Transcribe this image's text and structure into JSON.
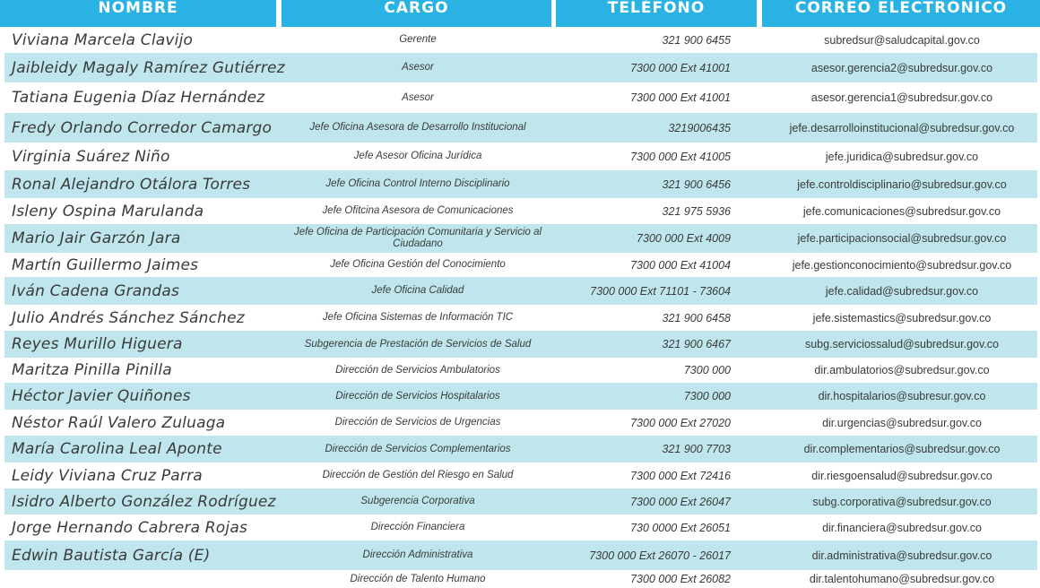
{
  "header": {
    "nombre": "NOMBRE",
    "cargo": "CARGO",
    "telefono": "TELÉFONO",
    "correo": "CORREO ELECTRÓNICO"
  },
  "colors": {
    "header_bg": "#29b2e3",
    "row_shade": "#bfe6ec",
    "text": "#3a3a3a"
  },
  "rows": [
    {
      "nombre": "Viviana Marcela Clavijo",
      "cargo": "Gerente",
      "telefono": "321 900 6455",
      "correo": "subredsur@saludcapital.gov.co"
    },
    {
      "nombre": "Jaibleidy Magaly Ramírez Gutiérrez",
      "cargo": "Asesor",
      "telefono": "7300 000 Ext 41001",
      "correo": "asesor.gerencia2@subredsur.gov.co"
    },
    {
      "nombre": "Tatiana Eugenia Díaz Hernández",
      "cargo": "Asesor",
      "telefono": "7300 000 Ext 41001",
      "correo": "asesor.gerencia1@subredsur.gov.co"
    },
    {
      "nombre": "Fredy Orlando Corredor Camargo",
      "cargo": "Jefe Oficina Asesora de Desarrollo Institucional",
      "telefono": "3219006435",
      "correo": "jefe.desarrolloinstitucional@subredsur.gov.co"
    },
    {
      "nombre": "Virginia Suárez Niño",
      "cargo": "Jefe Asesor Oficina Jurídica",
      "telefono": "7300 000 Ext 41005",
      "correo": "jefe.juridica@subredsur.gov.co"
    },
    {
      "nombre": "Ronal Alejandro Otálora Torres",
      "cargo": "Jefe Oficina Control Interno Disciplinario",
      "telefono": "321 900 6456",
      "correo": "jefe.controldisciplinario@subredsur.gov.co"
    },
    {
      "nombre": "Isleny Ospina Marulanda",
      "cargo": "Jefe Ofitcina Asesora de Comunicaciones",
      "telefono": "321 975 5936",
      "correo": "jefe.comunicaciones@subredsur.gov.co"
    },
    {
      "nombre": "Mario Jair Garzón Jara",
      "cargo": "Jefe Oficina de Participación Comunitaria y Servicio al Ciudadano",
      "telefono": "7300 000 Ext 4009",
      "correo": "jefe.participacionsocial@subredsur.gov.co"
    },
    {
      "nombre": "Martín Guillermo Jaimes",
      "cargo": "Jefe Oficina Gestión del Conocimiento",
      "telefono": "7300 000 Ext 41004",
      "correo": "jefe.gestionconocimiento@subredsur.gov.co"
    },
    {
      "nombre": "Iván Cadena Grandas",
      "cargo": "Jefe Oficina Calidad",
      "telefono": "7300 000 Ext 71101 - 73604",
      "correo": "jefe.calidad@subredsur.gov.co"
    },
    {
      "nombre": "Julio Andrés Sánchez Sánchez",
      "cargo": "Jefe Oficina Sistemas de Información TIC",
      "telefono": "321 900 6458",
      "correo": "jefe.sistemastics@subredsur.gov.co"
    },
    {
      "nombre": "Reyes Murillo Higuera",
      "cargo": "Subgerencia de Prestación de Servicios de Salud",
      "telefono": "321 900 6467",
      "correo": "subg.serviciossalud@subredsur.gov.co"
    },
    {
      "nombre": "Maritza Pinilla Pinilla",
      "cargo": "Dirección de Servicios Ambulatorios",
      "telefono": "7300 000",
      "correo": "dir.ambulatorios@subredsur.gov.co"
    },
    {
      "nombre": "Héctor Javier Quiñones",
      "cargo": "Dirección de Servicios Hospitalarios",
      "telefono": "7300 000",
      "correo": "dir.hospitalarios@subresur.gov.co"
    },
    {
      "nombre": "Néstor Raúl Valero Zuluaga",
      "cargo": "Dirección de Servicios de Urgencias",
      "telefono": "7300 000 Ext 27020",
      "correo": "dir.urgencias@subredsur.gov.co"
    },
    {
      "nombre": "María Carolina Leal Aponte",
      "cargo": "Dirección de Servicios Complementarios",
      "telefono": "321 900 7703",
      "correo": "dir.complementarios@subredsur.gov.co"
    },
    {
      "nombre": "Leidy Viviana Cruz Parra",
      "cargo": "Dirección de Gestión del Riesgo en Salud",
      "telefono": "7300 000 Ext 72416",
      "correo": "dir.riesgoensalud@subredsur.gov.co"
    },
    {
      "nombre": "Isidro Alberto González Rodríguez",
      "cargo": "Subgerencia Corporativa",
      "telefono": "7300 000 Ext 26047",
      "correo": "subg.corporativa@subredsur.gov.co"
    },
    {
      "nombre": "Jorge Hernando Cabrera Rojas",
      "cargo": "Dirección Financiera",
      "telefono": "730 0000 Ext 26051",
      "correo": "dir.financiera@subredsur.gov.co"
    },
    {
      "nombre": "Edwin Bautista García (E)",
      "cargo": "Dirección Administrativa",
      "telefono": "7300 000 Ext 26070 - 26017",
      "correo": "dir.administrativa@subredsur.gov.co"
    },
    {
      "nombre": "",
      "cargo": "Dirección de Talento Humano",
      "telefono": "7300 000 Ext 26082",
      "correo": "dir.talentohumano@subredsur.gov.co"
    }
  ]
}
